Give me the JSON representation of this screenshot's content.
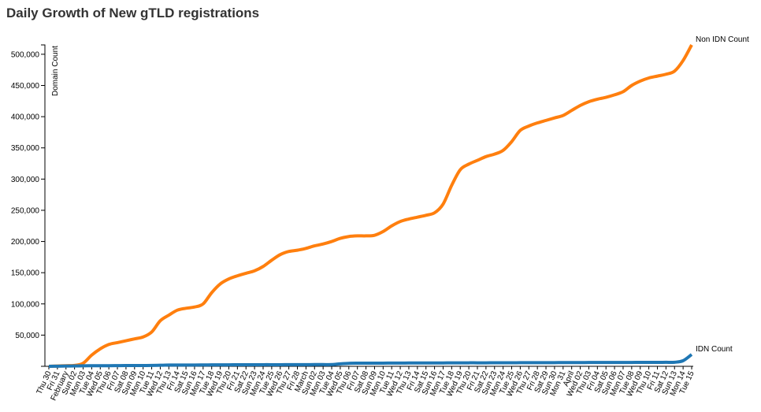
{
  "chart_data": {
    "type": "line",
    "title": "Daily Growth of New gTLD registrations",
    "y_label": "Domain Count",
    "categories": [
      "Thu 30",
      "Fri 31",
      "February",
      "Sun 02",
      "Mon 03",
      "Tue 04",
      "Wed 05",
      "Thu 06",
      "Fri 07",
      "Sat 08",
      "Sun 09",
      "Mon 10",
      "Tue 11",
      "Wed 12",
      "Thu 13",
      "Fri 14",
      "Sat 15",
      "Sun 16",
      "Mon 17",
      "Tue 18",
      "Wed 19",
      "Thu 20",
      "Fri 21",
      "Sat 22",
      "Sun 23",
      "Mon 24",
      "Tue 25",
      "Wed 26",
      "Thu 27",
      "Fri 28",
      "March",
      "Sun 02",
      "Mon 03",
      "Tue 04",
      "Wed 05",
      "Thu 06",
      "Fri 07",
      "Sat 08",
      "Sun 09",
      "Mon 10",
      "Tue 11",
      "Wed 12",
      "Thu 13",
      "Fri 14",
      "Sat 15",
      "Sun 16",
      "Mon 17",
      "Tue 18",
      "Wed 19",
      "Thu 20",
      "Fri 21",
      "Sat 22",
      "Sun 23",
      "Mon 24",
      "Tue 25",
      "Wed 26",
      "Thu 27",
      "Fri 28",
      "Sat 29",
      "Sun 30",
      "Mon 31",
      "April",
      "Wed 02",
      "Thu 03",
      "Fri 04",
      "Sat 05",
      "Sun 06",
      "Mon 07",
      "Tue 08",
      "Wed 09",
      "Thu 10",
      "Fri 11",
      "Sat 12",
      "Sun 13",
      "Mon 14",
      "Tue 15"
    ],
    "series": [
      {
        "name": "Non IDN Count",
        "color": "#ff7f0e",
        "values": [
          0,
          500,
          1000,
          1500,
          5000,
          18000,
          28000,
          35000,
          38000,
          41000,
          44000,
          47000,
          55000,
          73000,
          82000,
          90000,
          93000,
          95000,
          100000,
          118000,
          132000,
          140000,
          145000,
          149000,
          153000,
          160000,
          170000,
          179000,
          184000,
          186000,
          189000,
          193000,
          196000,
          200000,
          205000,
          208000,
          209000,
          209000,
          210000,
          216000,
          225000,
          232000,
          236000,
          239000,
          242000,
          246000,
          260000,
          290000,
          315000,
          324000,
          330000,
          336000,
          340000,
          346000,
          360000,
          378000,
          385000,
          390000,
          394000,
          398000,
          402000,
          410000,
          418000,
          424000,
          428000,
          431000,
          435000,
          440000,
          450000,
          457000,
          462000,
          465000,
          468000,
          473000,
          490000,
          515000
        ]
      },
      {
        "name": "IDN Count",
        "color": "#1f77b4",
        "values": [
          0,
          200,
          400,
          600,
          800,
          900,
          1000,
          1000,
          1100,
          1200,
          1200,
          1300,
          1400,
          1700,
          2000,
          2000,
          2100,
          2100,
          2200,
          2300,
          2400,
          2400,
          2500,
          2500,
          2500,
          2600,
          2600,
          2600,
          2700,
          2700,
          2700,
          2800,
          2800,
          2800,
          4000,
          4800,
          5000,
          5000,
          5100,
          5100,
          5200,
          5200,
          5300,
          5300,
          5300,
          5400,
          5400,
          5500,
          5500,
          5600,
          5600,
          5600,
          5700,
          5700,
          5700,
          5800,
          5800,
          5800,
          5900,
          5900,
          6000,
          6000,
          6000,
          6100,
          6100,
          6100,
          6200,
          6200,
          6200,
          6300,
          6300,
          6300,
          6400,
          6500,
          9000,
          19000
        ]
      }
    ],
    "ylim": [
      0,
      515000
    ],
    "yticks": [
      0,
      {
        "value": 50000,
        "label": "50,000"
      },
      {
        "value": 100000,
        "label": "100,000"
      },
      {
        "value": 150000,
        "label": "150,000"
      },
      {
        "value": 200000,
        "label": "200,000"
      },
      {
        "value": 250000,
        "label": "250,000"
      },
      {
        "value": 300000,
        "label": "300,000"
      },
      {
        "value": 350000,
        "label": "350,000"
      },
      {
        "value": 400000,
        "label": "400,000"
      },
      {
        "value": 450000,
        "label": "450,000"
      },
      {
        "value": 500000,
        "label": "500,000"
      }
    ]
  }
}
